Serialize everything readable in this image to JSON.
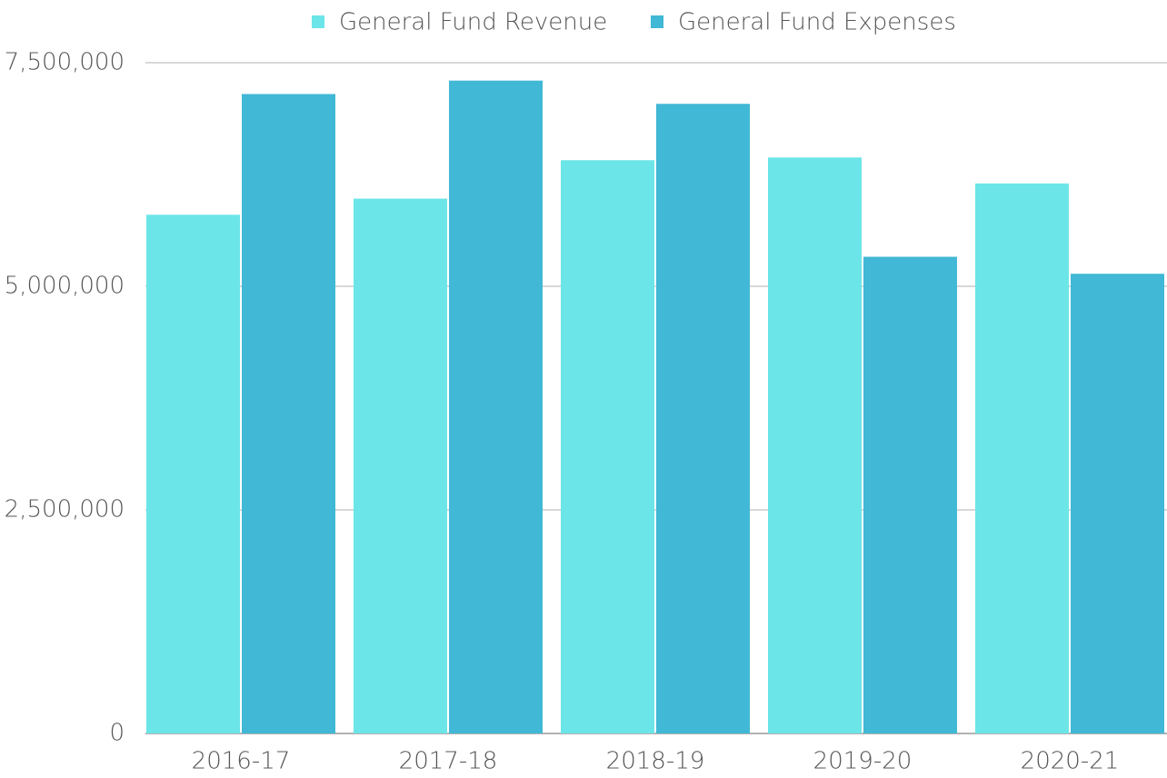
{
  "chart_data": {
    "type": "bar",
    "categories": [
      "2016-17",
      "2017-18",
      "2018-19",
      "2019-20",
      "2020-21"
    ],
    "series": [
      {
        "name": "General Fund Revenue",
        "color": "#6ce5e8",
        "values": [
          5800000,
          5980000,
          6410000,
          6440000,
          6150000
        ]
      },
      {
        "name": "General Fund Expenses",
        "color": "#41b8d5",
        "values": [
          7150000,
          7300000,
          7040000,
          5330000,
          5140000
        ]
      }
    ],
    "ylim": [
      0,
      7500000
    ],
    "yticks": [
      0,
      {
        "value": 2500000,
        "label": "2,500,000"
      },
      {
        "value": 5000000,
        "label": "5,000,000"
      },
      {
        "value": 7500000,
        "label": "7,500,000"
      }
    ],
    "grid": true,
    "legend": "top"
  }
}
